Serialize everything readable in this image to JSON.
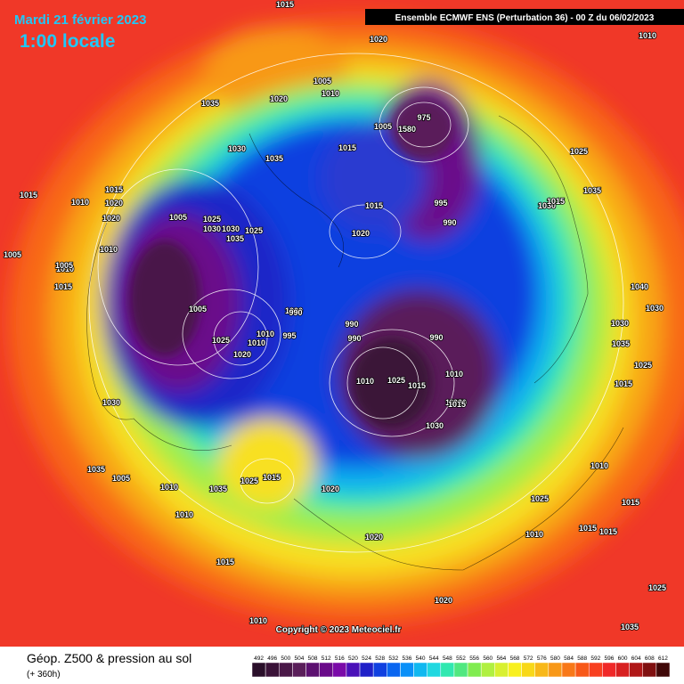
{
  "header": {
    "date": "Mardi 21 février 2023",
    "time": "1:00 locale",
    "run": "Ensemble ECMWF ENS  (Perturbation 36)  -  00 Z du 06/02/2023"
  },
  "copyright": "Copyright © 2023 Meteociel.fr",
  "legend": {
    "title": "Géop. Z500 & pression au sol",
    "subtitle": "(+ 360h)",
    "scale": [
      492,
      496,
      500,
      504,
      508,
      512,
      516,
      520,
      524,
      528,
      532,
      536,
      540,
      544,
      548,
      552,
      556,
      560,
      564,
      568,
      572,
      576,
      580,
      584,
      588,
      592,
      596,
      600,
      604,
      608,
      612
    ],
    "colors": [
      "#2a0f2a",
      "#3a1238",
      "#4a1848",
      "#5a1e5a",
      "#5c1070",
      "#6a0a8a",
      "#7a0aa8",
      "#4a10b8",
      "#1f20c8",
      "#1040e0",
      "#0a66f0",
      "#0a90f8",
      "#10b8f0",
      "#20d8e0",
      "#30e8b0",
      "#50e880",
      "#80ec50",
      "#b0f040",
      "#d8f030",
      "#f8f020",
      "#f8d818",
      "#f8b818",
      "#f89818",
      "#f87818",
      "#f85818",
      "#f84020",
      "#f02828",
      "#d82020",
      "#b01818",
      "#801010",
      "#400808"
    ]
  },
  "isobars": [
    "1015",
    "1020",
    "1010",
    "1035",
    "1020",
    "1005",
    "1010",
    "975",
    "1005",
    "1580",
    "1030",
    "1015",
    "1035",
    "1015",
    "1015",
    "1020",
    "1020",
    "1010",
    "1005",
    "1025",
    "1030",
    "1035",
    "1025",
    "1005",
    "1010",
    "1010",
    "1005",
    "1015",
    "1030",
    "1025",
    "1035",
    "1030",
    "1015",
    "1015",
    "1020",
    "995",
    "990",
    "1005",
    "1000",
    "1010",
    "1010",
    "1025",
    "1020",
    "990",
    "995",
    "990",
    "990",
    "990",
    "1010",
    "1015",
    "1025",
    "1030",
    "1035",
    "1020",
    "1015",
    "1030",
    "1035",
    "1005",
    "1015",
    "1010",
    "1035",
    "1025",
    "1020",
    "1025",
    "1010",
    "1010",
    "1020",
    "1010",
    "1015",
    "1015",
    "1015",
    "1020",
    "1010",
    "1010",
    "1015",
    "1025",
    "1035",
    "1040",
    "1030",
    "1030",
    "1035",
    "1025",
    "1015"
  ]
}
